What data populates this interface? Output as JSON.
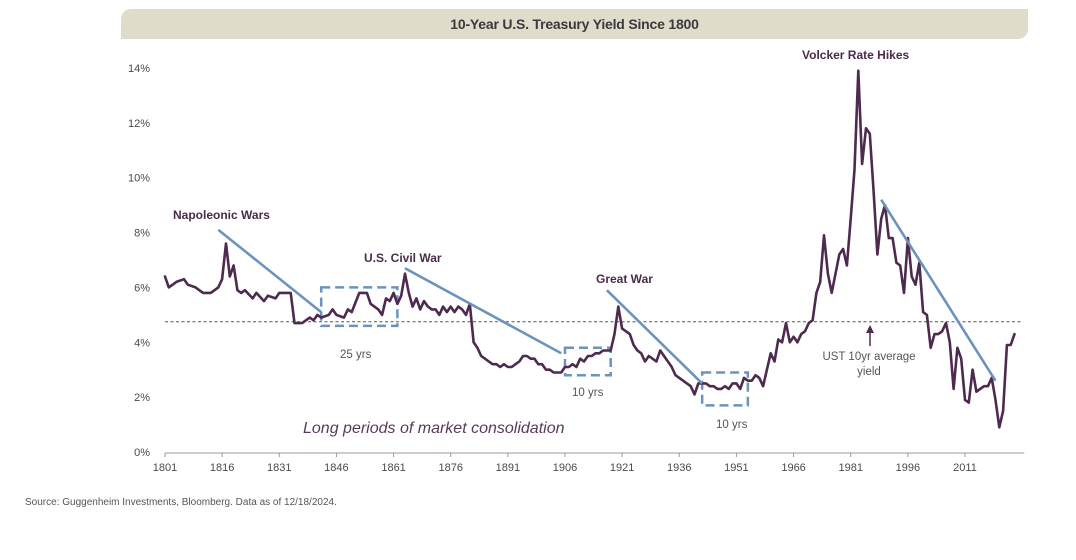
{
  "chart_data": {
    "type": "line",
    "title": "10-Year U.S. Treasury Yield Since 1800",
    "xlabel": "",
    "ylabel": "",
    "xlim": [
      1801,
      2025
    ],
    "ylim": [
      0,
      14
    ],
    "x_ticks": [
      1801,
      1816,
      1831,
      1846,
      1861,
      1876,
      1891,
      1906,
      1921,
      1936,
      1951,
      1966,
      1981,
      1996,
      2011
    ],
    "y_ticks": [
      0,
      2,
      4,
      6,
      8,
      10,
      12,
      14
    ],
    "y_tick_labels": [
      "0%",
      "2%",
      "4%",
      "6%",
      "8%",
      "10%",
      "12%",
      "14%"
    ],
    "grid": false,
    "series": [
      {
        "name": "10-Year U.S. Treasury Yield",
        "color": "#4e2a4e",
        "points": [
          [
            1801,
            6.4
          ],
          [
            1802,
            6.0
          ],
          [
            1804,
            6.2
          ],
          [
            1806,
            6.3
          ],
          [
            1807,
            6.1
          ],
          [
            1809,
            6.0
          ],
          [
            1811,
            5.8
          ],
          [
            1813,
            5.8
          ],
          [
            1815,
            6.0
          ],
          [
            1816,
            6.3
          ],
          [
            1817,
            7.6
          ],
          [
            1818,
            6.4
          ],
          [
            1819,
            6.8
          ],
          [
            1820,
            5.9
          ],
          [
            1821,
            5.8
          ],
          [
            1822,
            5.9
          ],
          [
            1824,
            5.6
          ],
          [
            1825,
            5.8
          ],
          [
            1827,
            5.5
          ],
          [
            1828,
            5.7
          ],
          [
            1830,
            5.6
          ],
          [
            1831,
            5.8
          ],
          [
            1833,
            5.8
          ],
          [
            1834,
            5.8
          ],
          [
            1835,
            4.7
          ],
          [
            1837,
            4.7
          ],
          [
            1839,
            4.9
          ],
          [
            1840,
            4.8
          ],
          [
            1841,
            5.0
          ],
          [
            1842,
            4.9
          ],
          [
            1844,
            5.0
          ],
          [
            1845,
            5.2
          ],
          [
            1846,
            5.0
          ],
          [
            1848,
            4.9
          ],
          [
            1849,
            5.2
          ],
          [
            1850,
            5.1
          ],
          [
            1852,
            5.8
          ],
          [
            1853,
            5.8
          ],
          [
            1854,
            5.8
          ],
          [
            1855,
            5.4
          ],
          [
            1857,
            5.2
          ],
          [
            1858,
            5.0
          ],
          [
            1859,
            5.6
          ],
          [
            1860,
            5.5
          ],
          [
            1861,
            5.8
          ],
          [
            1862,
            5.4
          ],
          [
            1863,
            5.7
          ],
          [
            1864,
            6.5
          ],
          [
            1865,
            5.8
          ],
          [
            1866,
            5.3
          ],
          [
            1867,
            5.6
          ],
          [
            1868,
            5.2
          ],
          [
            1869,
            5.5
          ],
          [
            1870,
            5.3
          ],
          [
            1871,
            5.2
          ],
          [
            1872,
            5.2
          ],
          [
            1873,
            5.0
          ],
          [
            1874,
            5.3
          ],
          [
            1875,
            5.1
          ],
          [
            1876,
            5.3
          ],
          [
            1877,
            5.1
          ],
          [
            1878,
            5.3
          ],
          [
            1879,
            5.2
          ],
          [
            1880,
            5.0
          ],
          [
            1881,
            5.4
          ],
          [
            1882,
            4.0
          ],
          [
            1883,
            3.8
          ],
          [
            1884,
            3.5
          ],
          [
            1885,
            3.4
          ],
          [
            1886,
            3.3
          ],
          [
            1887,
            3.2
          ],
          [
            1888,
            3.2
          ],
          [
            1889,
            3.1
          ],
          [
            1890,
            3.2
          ],
          [
            1891,
            3.1
          ],
          [
            1892,
            3.1
          ],
          [
            1893,
            3.2
          ],
          [
            1894,
            3.3
          ],
          [
            1895,
            3.5
          ],
          [
            1896,
            3.5
          ],
          [
            1897,
            3.4
          ],
          [
            1898,
            3.4
          ],
          [
            1899,
            3.2
          ],
          [
            1900,
            3.2
          ],
          [
            1901,
            3.0
          ],
          [
            1902,
            3.0
          ],
          [
            1903,
            2.9
          ],
          [
            1904,
            2.9
          ],
          [
            1905,
            2.9
          ],
          [
            1906,
            3.1
          ],
          [
            1907,
            3.1
          ],
          [
            1908,
            3.2
          ],
          [
            1909,
            3.1
          ],
          [
            1910,
            3.4
          ],
          [
            1911,
            3.3
          ],
          [
            1912,
            3.5
          ],
          [
            1913,
            3.5
          ],
          [
            1914,
            3.6
          ],
          [
            1915,
            3.6
          ],
          [
            1916,
            3.7
          ],
          [
            1917,
            3.7
          ],
          [
            1918,
            3.7
          ],
          [
            1919,
            4.3
          ],
          [
            1920,
            5.3
          ],
          [
            1921,
            4.5
          ],
          [
            1922,
            4.4
          ],
          [
            1923,
            4.3
          ],
          [
            1924,
            3.9
          ],
          [
            1925,
            3.7
          ],
          [
            1926,
            3.6
          ],
          [
            1927,
            3.3
          ],
          [
            1928,
            3.5
          ],
          [
            1929,
            3.4
          ],
          [
            1930,
            3.3
          ],
          [
            1931,
            3.7
          ],
          [
            1932,
            3.5
          ],
          [
            1933,
            3.3
          ],
          [
            1934,
            3.1
          ],
          [
            1935,
            2.8
          ],
          [
            1936,
            2.7
          ],
          [
            1937,
            2.6
          ],
          [
            1938,
            2.5
          ],
          [
            1939,
            2.4
          ],
          [
            1940,
            2.1
          ],
          [
            1941,
            2.5
          ],
          [
            1942,
            2.5
          ],
          [
            1943,
            2.5
          ],
          [
            1944,
            2.4
          ],
          [
            1945,
            2.4
          ],
          [
            1946,
            2.3
          ],
          [
            1947,
            2.3
          ],
          [
            1948,
            2.4
          ],
          [
            1949,
            2.3
          ],
          [
            1950,
            2.5
          ],
          [
            1951,
            2.5
          ],
          [
            1952,
            2.3
          ],
          [
            1953,
            2.7
          ],
          [
            1954,
            2.6
          ],
          [
            1955,
            2.6
          ],
          [
            1956,
            2.8
          ],
          [
            1957,
            2.7
          ],
          [
            1958,
            2.4
          ],
          [
            1959,
            3.0
          ],
          [
            1960,
            3.6
          ],
          [
            1961,
            3.3
          ],
          [
            1962,
            4.1
          ],
          [
            1963,
            4.0
          ],
          [
            1964,
            4.7
          ],
          [
            1965,
            4.0
          ],
          [
            1966,
            4.2
          ],
          [
            1967,
            4.0
          ],
          [
            1968,
            4.3
          ],
          [
            1969,
            4.4
          ],
          [
            1970,
            4.7
          ],
          [
            1971,
            4.8
          ],
          [
            1972,
            5.8
          ],
          [
            1973,
            6.2
          ],
          [
            1974,
            7.9
          ],
          [
            1975,
            6.5
          ],
          [
            1976,
            5.8
          ],
          [
            1977,
            6.5
          ],
          [
            1978,
            7.2
          ],
          [
            1979,
            7.4
          ],
          [
            1980,
            6.8
          ],
          [
            1981,
            8.5
          ],
          [
            1982,
            10.3
          ],
          [
            1983,
            13.9
          ],
          [
            1984,
            10.5
          ],
          [
            1985,
            11.8
          ],
          [
            1986,
            11.6
          ],
          [
            1987,
            9.5
          ],
          [
            1988,
            7.2
          ],
          [
            1989,
            8.5
          ],
          [
            1990,
            9.0
          ],
          [
            1991,
            7.8
          ],
          [
            1992,
            7.8
          ],
          [
            1993,
            6.9
          ],
          [
            1994,
            6.8
          ],
          [
            1995,
            5.8
          ],
          [
            1996,
            7.8
          ],
          [
            1997,
            6.4
          ],
          [
            1998,
            6.1
          ],
          [
            1999,
            6.9
          ],
          [
            2000,
            5.1
          ],
          [
            2001,
            5.0
          ],
          [
            2002,
            3.8
          ],
          [
            2003,
            4.3
          ],
          [
            2004,
            4.3
          ],
          [
            2005,
            4.4
          ],
          [
            2006,
            4.7
          ],
          [
            2007,
            4.0
          ],
          [
            2008,
            2.3
          ],
          [
            2009,
            3.8
          ],
          [
            2010,
            3.4
          ],
          [
            2011,
            1.9
          ],
          [
            2012,
            1.8
          ],
          [
            2013,
            3.0
          ],
          [
            2014,
            2.2
          ],
          [
            2015,
            2.3
          ],
          [
            2016,
            2.4
          ],
          [
            2017,
            2.4
          ],
          [
            2018,
            2.7
          ],
          [
            2019,
            1.9
          ],
          [
            2020,
            0.9
          ],
          [
            2021,
            1.5
          ],
          [
            2022,
            3.9
          ],
          [
            2023,
            3.9
          ],
          [
            2024,
            4.3
          ]
        ]
      }
    ],
    "reference_lines": [
      {
        "name": "UST 10yr average yield",
        "value": 4.75,
        "style": "dashed"
      }
    ],
    "annotations": {
      "napoleonic": "Napoleonic Wars",
      "civil_war": "U.S. Civil War",
      "great_war": "Great War",
      "volcker": "Volcker Rate Hikes",
      "avg_line_1": "UST 10yr average",
      "avg_line_2": "yield",
      "consolidation": "Long periods of market consolidation",
      "box1": "25 yrs",
      "box2": "10 yrs",
      "box3": "10 yrs"
    },
    "trend_lines": [
      {
        "from": [
          1815,
          8.1
        ],
        "to": [
          1842,
          5.1
        ]
      },
      {
        "from": [
          1864,
          6.7
        ],
        "to": [
          1905,
          3.6
        ]
      },
      {
        "from": [
          1917,
          5.9
        ],
        "to": [
          1942,
          2.5
        ]
      },
      {
        "from": [
          1989,
          9.2
        ],
        "to": [
          2019,
          2.6
        ]
      }
    ],
    "consolidation_boxes": [
      {
        "label": "25 yrs",
        "x_range": [
          1842,
          1862
        ],
        "y_range": [
          4.6,
          6.0
        ]
      },
      {
        "label": "10 yrs",
        "x_range": [
          1906,
          1918
        ],
        "y_range": [
          2.8,
          3.8
        ]
      },
      {
        "label": "10 yrs",
        "x_range": [
          1942,
          1954
        ],
        "y_range": [
          1.7,
          2.9
        ]
      }
    ],
    "colors": {
      "line": "#4e2a4e",
      "trend": "#6b93bd",
      "box": "#6b93bd",
      "avg": "#555555",
      "banner": "#dfdccb"
    }
  },
  "footer": {
    "source": "Source: Guggenheim Investments, Bloomberg. Data as of 12/18/2024."
  }
}
